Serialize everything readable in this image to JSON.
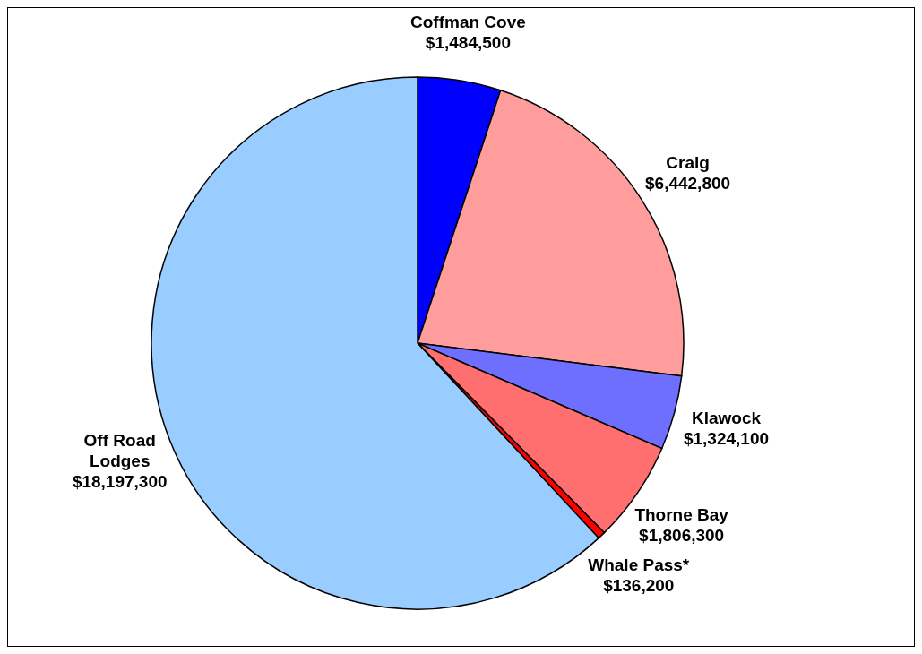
{
  "chart_data": {
    "type": "pie",
    "categories": [
      "Coffman Cove",
      "Craig",
      "Klawock",
      "Thorne Bay",
      "Whale Pass*",
      "Off Road Lodges"
    ],
    "values": [
      1484500,
      6442800,
      1324100,
      1806300,
      136200,
      18197300
    ],
    "value_labels": [
      "$1,484,500",
      "$6,442,800",
      "$1,324,100",
      "$1,806,300",
      "$136,200",
      "$18,197,300"
    ],
    "colors": [
      "#0000ff",
      "#ff9c9c",
      "#6f6fff",
      "#ff6f6f",
      "#ff0000",
      "#99ccff"
    ]
  }
}
